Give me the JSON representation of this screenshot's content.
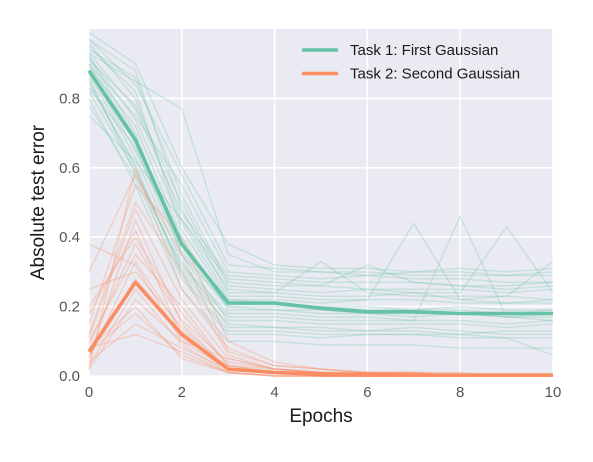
{
  "chart_data": {
    "type": "line",
    "title": "",
    "xlabel": "Epochs",
    "ylabel": "Absolute test error",
    "xlim": [
      0,
      10
    ],
    "ylim": [
      0,
      1.0
    ],
    "x_ticks": [
      0,
      2,
      4,
      6,
      8,
      10
    ],
    "y_ticks": [
      0.0,
      0.2,
      0.4,
      0.6,
      0.8
    ],
    "x_tick_labels": [
      "0",
      "2",
      "4",
      "6",
      "8",
      "10"
    ],
    "y_tick_labels": [
      "0.0",
      "0.2",
      "0.4",
      "0.6",
      "0.8"
    ],
    "grid": true,
    "legend_position": "top-right",
    "x": [
      0,
      1,
      2,
      3,
      4,
      5,
      6,
      7,
      8,
      9,
      10
    ],
    "series": [
      {
        "name": "Task 1: First Gaussian",
        "color": "#66c2a5",
        "mean": [
          0.88,
          0.68,
          0.38,
          0.21,
          0.21,
          0.195,
          0.185,
          0.185,
          0.18,
          0.18,
          0.18
        ],
        "runs": [
          [
            0.97,
            0.88,
            0.48,
            0.24,
            0.24,
            0.23,
            0.23,
            0.24,
            0.22,
            0.23,
            0.22
          ],
          [
            0.95,
            0.82,
            0.42,
            0.22,
            0.21,
            0.2,
            0.2,
            0.19,
            0.2,
            0.19,
            0.19
          ],
          [
            0.92,
            0.7,
            0.35,
            0.2,
            0.19,
            0.18,
            0.18,
            0.17,
            0.18,
            0.17,
            0.17
          ],
          [
            0.9,
            0.75,
            0.55,
            0.3,
            0.29,
            0.28,
            0.29,
            0.28,
            0.28,
            0.27,
            0.27
          ],
          [
            0.85,
            0.6,
            0.3,
            0.15,
            0.14,
            0.14,
            0.13,
            0.14,
            0.13,
            0.12,
            0.12
          ],
          [
            0.8,
            0.55,
            0.25,
            0.1,
            0.1,
            0.09,
            0.09,
            0.09,
            0.08,
            0.08,
            0.08
          ],
          [
            0.93,
            0.85,
            0.77,
            0.35,
            0.3,
            0.3,
            0.29,
            0.3,
            0.3,
            0.29,
            0.3
          ],
          [
            0.75,
            0.62,
            0.45,
            0.28,
            0.27,
            0.26,
            0.32,
            0.27,
            0.26,
            0.25,
            0.26
          ],
          [
            0.99,
            0.9,
            0.6,
            0.38,
            0.32,
            0.31,
            0.31,
            0.3,
            0.31,
            0.3,
            0.31
          ],
          [
            0.88,
            0.65,
            0.38,
            0.22,
            0.22,
            0.21,
            0.22,
            0.44,
            0.22,
            0.21,
            0.22
          ],
          [
            0.86,
            0.58,
            0.32,
            0.18,
            0.18,
            0.17,
            0.17,
            0.16,
            0.46,
            0.17,
            0.16
          ],
          [
            0.91,
            0.78,
            0.5,
            0.26,
            0.25,
            0.24,
            0.25,
            0.24,
            0.24,
            0.43,
            0.24
          ],
          [
            0.78,
            0.57,
            0.28,
            0.12,
            0.12,
            0.11,
            0.12,
            0.12,
            0.11,
            0.11,
            0.11
          ],
          [
            0.96,
            0.8,
            0.45,
            0.25,
            0.24,
            0.33,
            0.24,
            0.23,
            0.23,
            0.23,
            0.33
          ],
          [
            0.89,
            0.72,
            0.4,
            0.19,
            0.19,
            0.19,
            0.18,
            0.18,
            0.18,
            0.17,
            0.18
          ],
          [
            0.83,
            0.66,
            0.35,
            0.16,
            0.16,
            0.15,
            0.15,
            0.15,
            0.15,
            0.14,
            0.15
          ],
          [
            0.94,
            0.86,
            0.52,
            0.27,
            0.26,
            0.26,
            0.25,
            0.25,
            0.25,
            0.24,
            0.25
          ],
          [
            0.87,
            0.63,
            0.33,
            0.14,
            0.14,
            0.13,
            0.13,
            0.13,
            0.12,
            0.13,
            0.13
          ],
          [
            0.92,
            0.74,
            0.44,
            0.23,
            0.23,
            0.22,
            0.22,
            0.22,
            0.21,
            0.21,
            0.21
          ],
          [
            0.84,
            0.61,
            0.29,
            0.13,
            0.13,
            0.12,
            0.12,
            0.12,
            0.12,
            0.11,
            0.06
          ],
          [
            0.97,
            0.84,
            0.58,
            0.32,
            0.31,
            0.3,
            0.3,
            0.29,
            0.29,
            0.29,
            0.29
          ],
          [
            0.9,
            0.69,
            0.36,
            0.2,
            0.2,
            0.2,
            0.19,
            0.19,
            0.19,
            0.18,
            0.19
          ],
          [
            0.82,
            0.59,
            0.31,
            0.17,
            0.17,
            0.16,
            0.16,
            0.16,
            0.16,
            0.15,
            0.16
          ],
          [
            0.93,
            0.77,
            0.47,
            0.29,
            0.28,
            0.27,
            0.27,
            0.27,
            0.26,
            0.26,
            0.27
          ]
        ]
      },
      {
        "name": "Task 2: Second Gaussian",
        "color": "#fc8d62",
        "mean": [
          0.07,
          0.27,
          0.12,
          0.02,
          0.01,
          0.005,
          0.004,
          0.003,
          0.003,
          0.003,
          0.003
        ],
        "runs": [
          [
            0.05,
            0.45,
            0.15,
            0.02,
            0.01,
            0.01,
            0.0,
            0.0,
            0.0,
            0.0,
            0.0
          ],
          [
            0.1,
            0.35,
            0.2,
            0.03,
            0.02,
            0.01,
            0.01,
            0.0,
            0.0,
            0.0,
            0.0
          ],
          [
            0.38,
            0.32,
            0.1,
            0.05,
            0.02,
            0.01,
            0.01,
            0.01,
            0.0,
            0.0,
            0.0
          ],
          [
            0.02,
            0.6,
            0.25,
            0.08,
            0.03,
            0.02,
            0.01,
            0.01,
            0.01,
            0.0,
            0.0
          ],
          [
            0.08,
            0.2,
            0.05,
            0.01,
            0.0,
            0.0,
            0.0,
            0.0,
            0.0,
            0.0,
            0.0
          ],
          [
            0.12,
            0.5,
            0.3,
            0.06,
            0.02,
            0.01,
            0.01,
            0.0,
            0.0,
            0.0,
            0.0
          ],
          [
            0.04,
            0.15,
            0.08,
            0.02,
            0.01,
            0.0,
            0.0,
            0.0,
            0.0,
            0.0,
            0.0
          ],
          [
            0.2,
            0.4,
            0.18,
            0.03,
            0.01,
            0.01,
            0.0,
            0.0,
            0.0,
            0.0,
            0.0
          ],
          [
            0.06,
            0.28,
            0.12,
            0.02,
            0.01,
            0.0,
            0.0,
            0.0,
            0.0,
            0.0,
            0.0
          ],
          [
            0.15,
            0.55,
            0.4,
            0.1,
            0.04,
            0.02,
            0.01,
            0.01,
            0.0,
            0.0,
            0.0
          ],
          [
            0.03,
            0.25,
            0.09,
            0.01,
            0.0,
            0.0,
            0.0,
            0.0,
            0.0,
            0.0,
            0.0
          ],
          [
            0.09,
            0.38,
            0.16,
            0.04,
            0.02,
            0.01,
            0.0,
            0.0,
            0.0,
            0.0,
            0.0
          ],
          [
            0.25,
            0.3,
            0.14,
            0.02,
            0.01,
            0.0,
            0.0,
            0.0,
            0.0,
            0.0,
            0.0
          ],
          [
            0.07,
            0.18,
            0.06,
            0.01,
            0.0,
            0.0,
            0.0,
            0.0,
            0.0,
            0.0,
            0.0
          ],
          [
            0.11,
            0.48,
            0.22,
            0.05,
            0.02,
            0.01,
            0.0,
            0.0,
            0.0,
            0.0,
            0.0
          ],
          [
            0.02,
            0.22,
            0.1,
            0.02,
            0.01,
            0.0,
            0.0,
            0.0,
            0.0,
            0.0,
            0.0
          ],
          [
            0.18,
            0.42,
            0.11,
            0.03,
            0.01,
            0.0,
            0.0,
            0.0,
            0.0,
            0.0,
            0.0
          ],
          [
            0.05,
            0.33,
            0.13,
            0.02,
            0.01,
            0.0,
            0.0,
            0.0,
            0.0,
            0.0,
            0.0
          ],
          [
            0.08,
            0.12,
            0.07,
            0.01,
            0.0,
            0.0,
            0.0,
            0.0,
            0.0,
            0.0,
            0.0
          ],
          [
            0.3,
            0.58,
            0.35,
            0.07,
            0.03,
            0.02,
            0.01,
            0.01,
            0.0,
            0.0,
            0.0
          ]
        ]
      }
    ]
  }
}
